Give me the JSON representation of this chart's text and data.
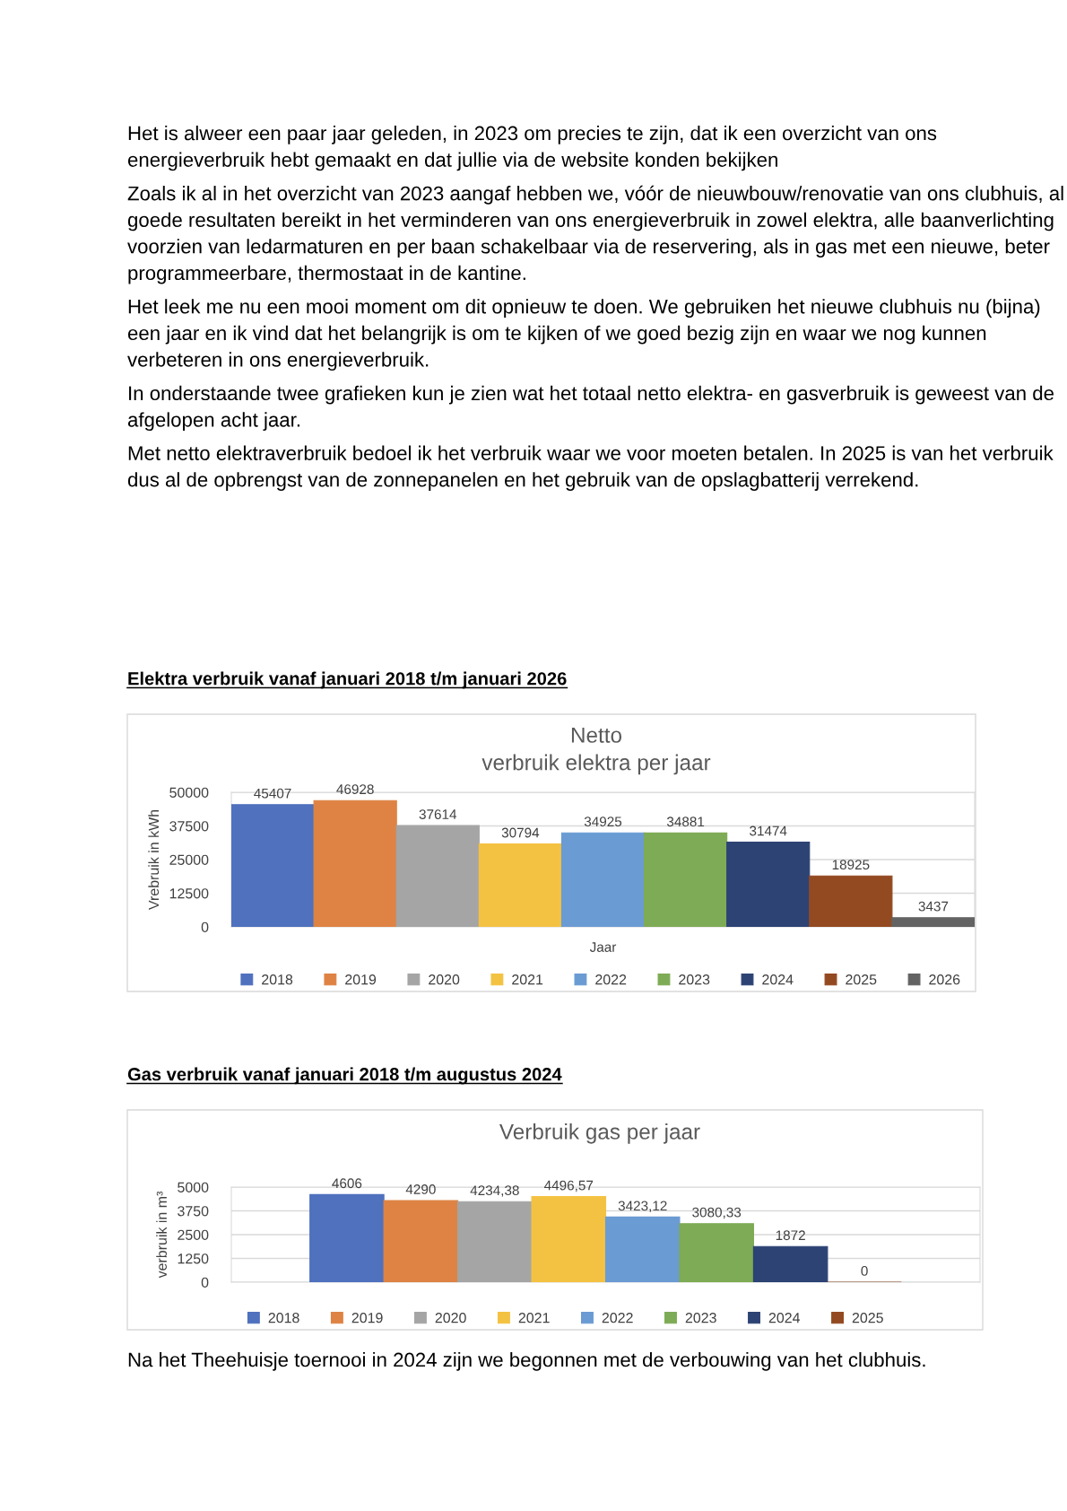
{
  "chart_data": [
    {
      "type": "bar",
      "title": "Netto\nverbruik elektra per jaar",
      "subtitle": "Elektra verbruik vanaf januari 2018 t/m januari 2026",
      "xlabel": "Jaar",
      "ylabel": "Vrebruik in kWh",
      "annotations": [
        "Het is alweer een paar jaar geleden, in 2023 om precies te zijn, dat ik een overzicht van ons energieverbruik hebt gemaakt en dat jullie via de website konden bekijken",
        "Zoals ik al in het overzicht van 2023 aangaf hebben we, vóór de nieuwbouw/renovatie van ons clubhuis, al goede resultaten bereikt in het verminderen van ons energieverbruik in zowel elektra, alle baanverlichting voorzien van ledarmaturen en per baan schakelbaar via de reservering, als in gas met een nieuwe, beter programmeerbare, thermostaat in de kantine.",
        "Het leek me nu een mooi moment om dit opnieuw te doen. We gebruiken het nieuwe clubhuis nu (bijna) een jaar en ik vind dat het belangrijk is om te kijken of we goed bezig zijn en waar we nog kunnen verbeteren in ons energieverbruik.",
        "In onderstaande twee grafieken kun je zien wat het totaal netto elektra- en gasverbruik is geweest van de afgelopen acht jaar.",
        "Met netto elektraverbruik bedoel ik het verbruik waar we voor moeten betalen. In 2025 is van het verbruik dus al de opbrengst van de zonnepanelen en het gebruik van de opslagbatterij verrekend."
      ],
      "categories": [
        null
      ],
      "series": [
        {
          "name": "2018",
          "color": "#4f71be",
          "values": [
            45407
          ]
        },
        {
          "name": "2019",
          "color": "#de8344",
          "values": [
            46928
          ]
        },
        {
          "name": "2020",
          "color": "#a5a5a5",
          "values": [
            37614
          ]
        },
        {
          "name": "2021",
          "color": "#f4c242",
          "values": [
            30794
          ]
        },
        {
          "name": "2022",
          "color": "#6a9bd3",
          "values": [
            34925
          ]
        },
        {
          "name": "2023",
          "color": "#7eab55",
          "values": [
            34881
          ]
        },
        {
          "name": "2024",
          "color": "#2d4374",
          "values": [
            31474
          ]
        },
        {
          "name": "2025",
          "color": "#934a20",
          "values": [
            18925
          ]
        },
        {
          "name": "2026",
          "color": "#636363",
          "values": [
            3437
          ]
        }
      ],
      "ylim": [
        0,
        50000
      ],
      "yticks": [
        0,
        12500,
        25000,
        37500,
        50000
      ],
      "grid": "y",
      "legend": "bottom",
      "data_labels": true
    },
    {
      "type": "bar",
      "title": "Verbruik gas per jaar",
      "subtitle": "Gas verbruik vanaf januari 2018 t/m augustus 2024",
      "ylabel": "verbruik in m³",
      "annotations": [
        "Na het Theehuisje toernooi in 2024 zijn we begonnen met de verbouwing van het clubhuis."
      ],
      "categories": [
        null
      ],
      "series": [
        {
          "name": "2018",
          "color": "#4f71be",
          "values": [
            4606
          ],
          "value_labels": [
            "4606"
          ]
        },
        {
          "name": "2019",
          "color": "#de8344",
          "values": [
            4290
          ],
          "value_labels": [
            "4290"
          ]
        },
        {
          "name": "2020",
          "color": "#a5a5a5",
          "values": [
            4234.38
          ],
          "value_labels": [
            "4234,38"
          ]
        },
        {
          "name": "2021",
          "color": "#f4c242",
          "values": [
            4496.57
          ],
          "value_labels": [
            "4496,57"
          ]
        },
        {
          "name": "2022",
          "color": "#6a9bd3",
          "values": [
            3423.12
          ],
          "value_labels": [
            "3423,12"
          ]
        },
        {
          "name": "2023",
          "color": "#7eab55",
          "values": [
            3080.33
          ],
          "value_labels": [
            "3080,33"
          ]
        },
        {
          "name": "2024",
          "color": "#2d4374",
          "values": [
            1872
          ],
          "value_labels": [
            "1872"
          ]
        },
        {
          "name": "2025",
          "color": "#934a20",
          "values": [
            0
          ],
          "value_labels": [
            "0"
          ]
        }
      ],
      "ylim": [
        0,
        5000
      ],
      "yticks": [
        0,
        1250,
        2500,
        3750,
        5000
      ],
      "grid": "y",
      "legend": "bottom"
    }
  ]
}
